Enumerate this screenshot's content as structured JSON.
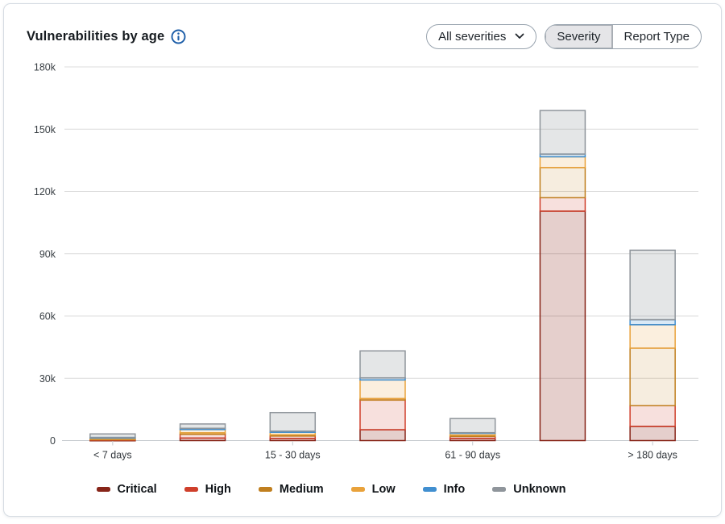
{
  "header": {
    "title": "Vulnerabilities by age"
  },
  "controls": {
    "severity_dropdown": {
      "label": "All severities",
      "state": "collapsed"
    },
    "view_toggle": {
      "options": [
        {
          "label": "Severity",
          "selected": true
        },
        {
          "label": "Report Type",
          "selected": false
        }
      ]
    }
  },
  "chart_data": {
    "type": "bar",
    "stacked": true,
    "title": "Vulnerabilities by age",
    "categories": [
      "< 7 days",
      "",
      "15 - 30 days",
      "",
      "61 - 90 days",
      "",
      "> 180 days"
    ],
    "series": [
      {
        "name": "Critical",
        "color": "#872519",
        "fill": "rgba(135,37,25,0.22)",
        "values": [
          200,
          1200,
          1000,
          5200,
          1000,
          110500,
          6800
        ]
      },
      {
        "name": "High",
        "color": "#cf3f2b",
        "fill": "rgba(207,63,43,0.16)",
        "values": [
          300,
          1800,
          1200,
          14300,
          1000,
          6500,
          10000
        ]
      },
      {
        "name": "Medium",
        "color": "#c07f1f",
        "fill": "rgba(192,127,31,0.14)",
        "values": [
          200,
          700,
          600,
          700,
          600,
          14500,
          27700
        ]
      },
      {
        "name": "Low",
        "color": "#e9a23b",
        "fill": "rgba(233,162,59,0.17)",
        "values": [
          500,
          1600,
          1200,
          9000,
          900,
          5200,
          11300
        ]
      },
      {
        "name": "Info",
        "color": "#418fd0",
        "fill": "rgba(65,143,208,0.20)",
        "values": [
          300,
          600,
          500,
          1000,
          300,
          1300,
          2400
        ]
      },
      {
        "name": "Unknown",
        "color": "#8f959b",
        "fill": "rgba(143,149,155,0.24)",
        "values": [
          1700,
          2100,
          9000,
          13000,
          6800,
          21000,
          33500
        ]
      }
    ],
    "totals": [
      3200,
      8000,
      13500,
      43200,
      10600,
      159000,
      91700
    ],
    "yticks": [
      {
        "value": 0,
        "label": "0"
      },
      {
        "value": 30000,
        "label": "30k"
      },
      {
        "value": 60000,
        "label": "60k"
      },
      {
        "value": 90000,
        "label": "90k"
      },
      {
        "value": 120000,
        "label": "120k"
      },
      {
        "value": 150000,
        "label": "150k"
      },
      {
        "value": 180000,
        "label": "180k"
      }
    ],
    "ylim": [
      0,
      180000
    ],
    "grid": true,
    "legend_position": "bottom"
  },
  "legend": {
    "items": [
      {
        "label": "Critical",
        "color": "#872519"
      },
      {
        "label": "High",
        "color": "#cf3f2b"
      },
      {
        "label": "Medium",
        "color": "#c07f1f"
      },
      {
        "label": "Low",
        "color": "#e9a23b"
      },
      {
        "label": "Info",
        "color": "#418fd0"
      },
      {
        "label": "Unknown",
        "color": "#8f959b"
      }
    ]
  }
}
